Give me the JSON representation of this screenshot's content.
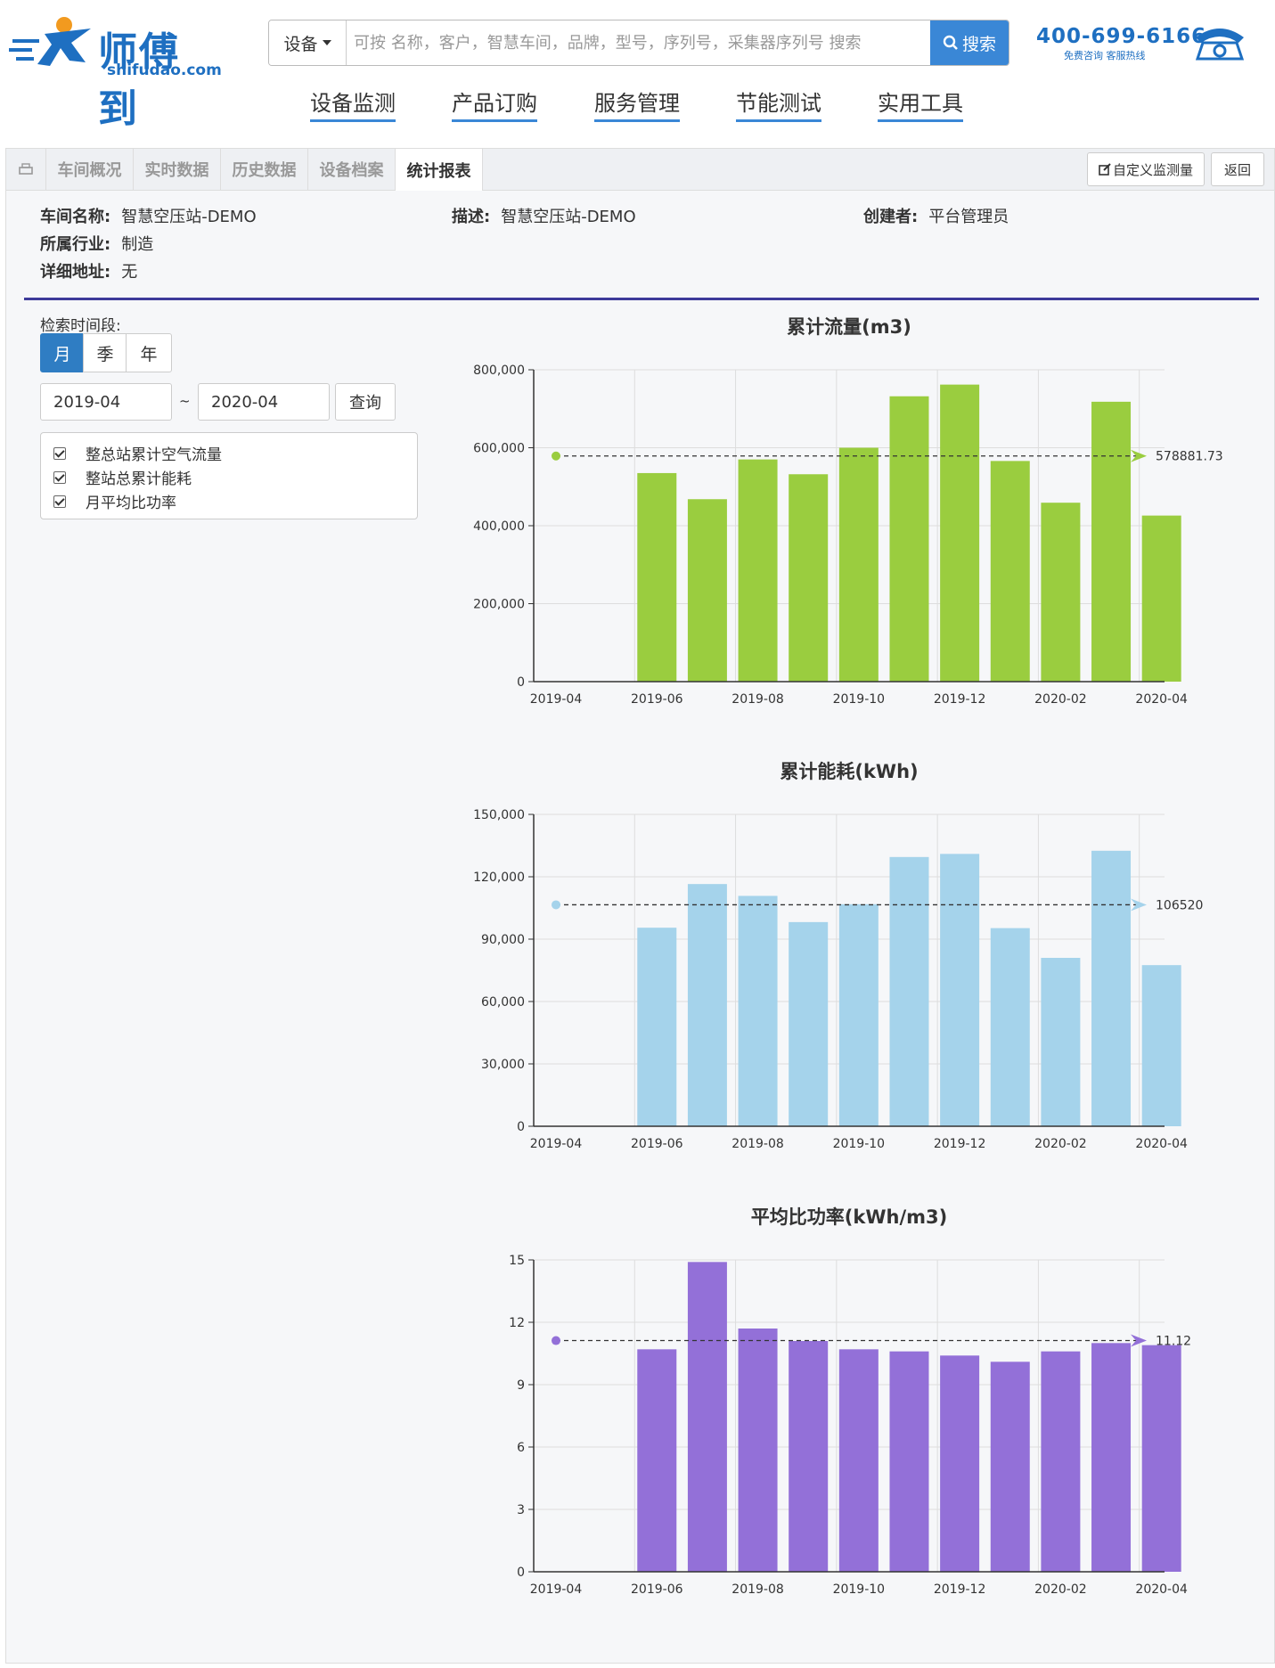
{
  "header": {
    "brand": "师傅到",
    "domain": "shifudao.com",
    "search_category": "设备",
    "search_placeholder": "可按 名称，客户，智慧车间，品牌，型号，序列号，采集器序列号 搜索",
    "search_button": "搜索",
    "hotline_number": "400-699-6166",
    "hotline_sub": "免费咨询  客服热线"
  },
  "nav": [
    "设备监测",
    "产品订购",
    "服务管理",
    "节能测试",
    "实用工具"
  ],
  "tabs": [
    "车间概况",
    "实时数据",
    "历史数据",
    "设备档案",
    "统计报表"
  ],
  "active_tab": "统计报表",
  "toolbar": {
    "custom_label": "自定义监测量",
    "back_label": "返回"
  },
  "workshop": {
    "name_label": "车间名称:",
    "name_value": "智慧空压站-DEMO",
    "desc_label": "描述:",
    "desc_value": "智慧空压站-DEMO",
    "creator_label": "创建者:",
    "creator_value": "平台管理员",
    "industry_label": "所属行业:",
    "industry_value": "制造",
    "address_label": "详细地址:",
    "address_value": "无"
  },
  "filter": {
    "period_label": "检索时间段:",
    "periods": [
      "月",
      "季",
      "年"
    ],
    "active_period": "月",
    "start_date": "2019-04",
    "separator": "~",
    "end_date": "2020-04",
    "query_button": "查询",
    "options": [
      "整总站累计空气流量",
      "整站总累计能耗",
      "月平均比功率"
    ]
  },
  "chart_data": [
    {
      "type": "bar",
      "title": "累计流量(m3)",
      "categories": [
        "2019-04",
        "2019-05",
        "2019-06",
        "2019-07",
        "2019-08",
        "2019-09",
        "2019-10",
        "2019-11",
        "2019-12",
        "2020-01",
        "2020-02",
        "2020-03",
        "2020-04"
      ],
      "values": [
        null,
        null,
        535000,
        468000,
        570000,
        532000,
        600000,
        732000,
        762000,
        566000,
        459000,
        718000,
        426000
      ],
      "x_tick_labels": [
        "2019-04",
        "2019-06",
        "2019-08",
        "2019-10",
        "2019-12",
        "2020-02",
        "2020-04"
      ],
      "ylim": [
        0,
        800000
      ],
      "y_ticks": [
        "0",
        "200,000",
        "400,000",
        "600,000",
        "800,000"
      ],
      "average": 578881.73,
      "average_label": "578881.73",
      "color": "#9acd3f",
      "grid": true
    },
    {
      "type": "bar",
      "title": "累计能耗(kWh)",
      "categories": [
        "2019-04",
        "2019-05",
        "2019-06",
        "2019-07",
        "2019-08",
        "2019-09",
        "2019-10",
        "2019-11",
        "2019-12",
        "2020-01",
        "2020-02",
        "2020-03",
        "2020-04"
      ],
      "values": [
        null,
        null,
        95500,
        116500,
        110800,
        98200,
        106800,
        129500,
        131000,
        95300,
        81000,
        132500,
        77500
      ],
      "x_tick_labels": [
        "2019-04",
        "2019-06",
        "2019-08",
        "2019-10",
        "2019-12",
        "2020-02",
        "2020-04"
      ],
      "ylim": [
        0,
        150000
      ],
      "y_ticks": [
        "0",
        "30,000",
        "60,000",
        "90,000",
        "120,000",
        "150,000"
      ],
      "average": 106520,
      "average_label": "106520",
      "color": "#a5d3eb",
      "grid": true
    },
    {
      "type": "bar",
      "title": "平均比功率(kWh/m3)",
      "categories": [
        "2019-04",
        "2019-05",
        "2019-06",
        "2019-07",
        "2019-08",
        "2019-09",
        "2019-10",
        "2019-11",
        "2019-12",
        "2020-01",
        "2020-02",
        "2020-03",
        "2020-04"
      ],
      "values": [
        null,
        null,
        10.7,
        14.9,
        11.7,
        11.1,
        10.7,
        10.6,
        10.4,
        10.1,
        10.6,
        11.0,
        10.9
      ],
      "x_tick_labels": [
        "2019-04",
        "2019-06",
        "2019-08",
        "2019-10",
        "2019-12",
        "2020-02",
        "2020-04"
      ],
      "ylim": [
        0,
        15
      ],
      "y_ticks": [
        "0",
        "3",
        "6",
        "9",
        "12",
        "15"
      ],
      "average": 11.12,
      "average_label": "11.12",
      "color": "#9370d8",
      "grid": true
    }
  ]
}
